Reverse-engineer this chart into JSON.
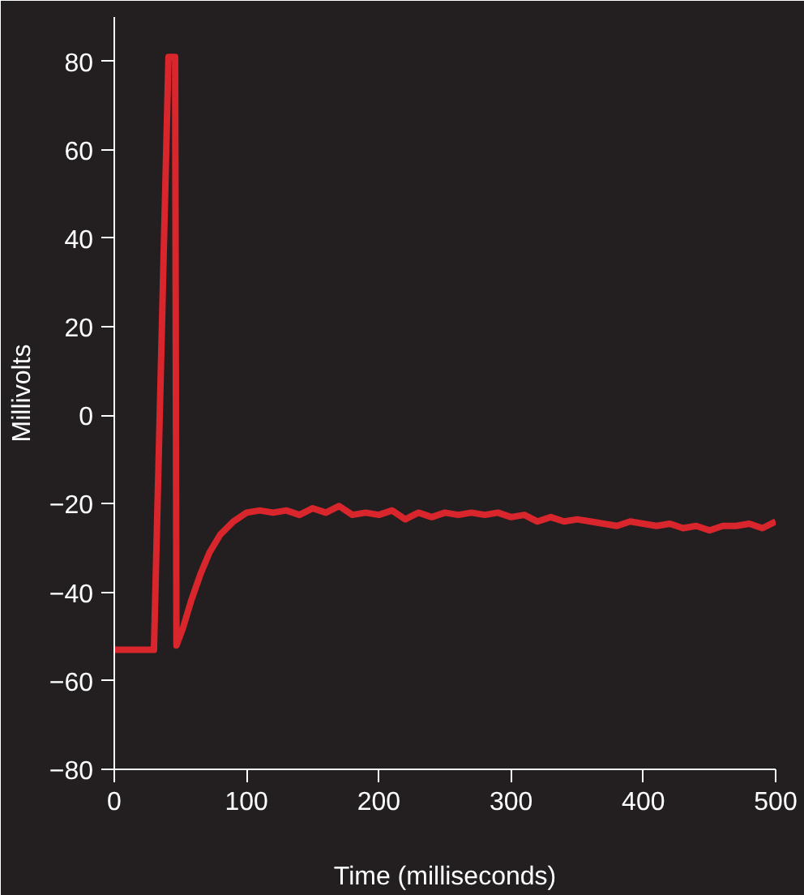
{
  "chart_data": {
    "type": "line",
    "xlabel": "Time (milliseconds)",
    "ylabel": "Millivolts",
    "xlim": [
      0,
      500
    ],
    "ylim": [
      -80,
      90
    ],
    "xticks": [
      0,
      100,
      200,
      300,
      400,
      500
    ],
    "yticks": [
      -80,
      -60,
      -40,
      -20,
      0,
      20,
      40,
      60,
      80
    ],
    "grid": false,
    "marker": "none",
    "line_style": "solid",
    "series": [
      {
        "color": "#d9262c",
        "x": [
          0,
          30,
          41,
          46,
          47,
          52,
          58,
          65,
          72,
          80,
          90,
          100,
          110,
          120,
          130,
          140,
          150,
          160,
          170,
          180,
          190,
          200,
          210,
          220,
          230,
          240,
          250,
          260,
          270,
          280,
          290,
          300,
          310,
          320,
          330,
          340,
          350,
          360,
          370,
          380,
          390,
          400,
          410,
          420,
          430,
          440,
          450,
          460,
          470,
          480,
          490,
          500
        ],
        "values": [
          -53,
          -53,
          81,
          81,
          -52,
          -48,
          -42,
          -36,
          -31,
          -27,
          -24,
          -22,
          -21.5,
          -22,
          -21.5,
          -22.5,
          -21,
          -22,
          -20.5,
          -22.5,
          -22,
          -22.5,
          -21.5,
          -23.5,
          -22,
          -23,
          -22,
          -22.5,
          -22,
          -22.5,
          -22,
          -23,
          -22.5,
          -24,
          -23,
          -24,
          -23.5,
          -24,
          -24.5,
          -25,
          -24,
          -24.5,
          -25,
          -24.5,
          -25.5,
          -25,
          -26,
          -25,
          -25,
          -24.5,
          -25.5,
          -24
        ]
      }
    ]
  }
}
